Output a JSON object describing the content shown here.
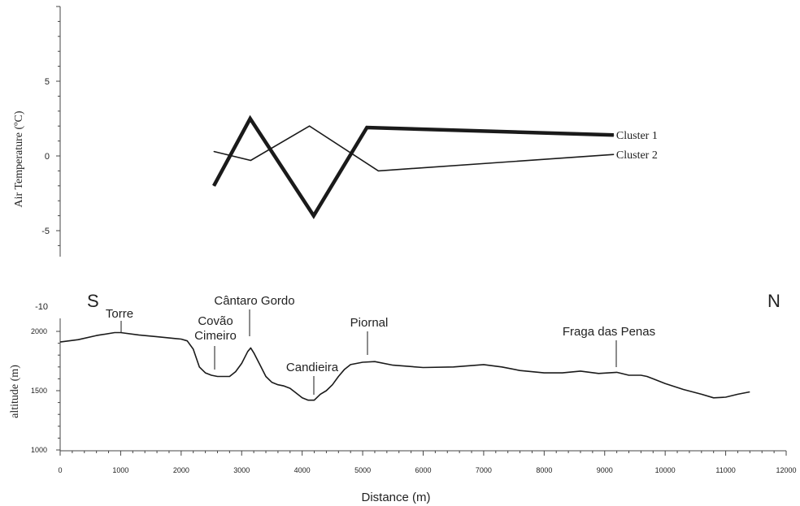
{
  "chart_data": [
    {
      "type": "line",
      "ylabel": "Air Temperature (ºC)",
      "ylim": [
        -10,
        10
      ],
      "y_ticks": [
        "5",
        "0",
        "-5",
        "-10"
      ],
      "series": [
        {
          "name": "Cluster 1",
          "emphasis": "thick",
          "x": [
            2540,
            3140,
            4190,
            5070,
            9150
          ],
          "values": [
            -2.0,
            2.5,
            -4.0,
            1.9,
            1.4
          ]
        },
        {
          "name": "Cluster 2",
          "emphasis": "thin",
          "x": [
            2540,
            3150,
            4120,
            5260,
            9150
          ],
          "values": [
            0.3,
            -0.3,
            2.0,
            -1.0,
            0.1
          ]
        }
      ]
    },
    {
      "type": "area",
      "xlabel": "Distance (m)",
      "ylabel": "altitude (m)",
      "xlim": [
        0,
        12000
      ],
      "ylim": [
        1000,
        2000
      ],
      "x_ticks": [
        "0",
        "1000",
        "2000",
        "3000",
        "4000",
        "5000",
        "6000",
        "7000",
        "8000",
        "9000",
        "10000",
        "11000",
        "12000"
      ],
      "y_ticks": [
        "2000",
        "1500",
        "1000"
      ],
      "direction_labels": {
        "left": "S",
        "right": "N"
      },
      "x": [
        0,
        300,
        600,
        900,
        1000,
        1300,
        1600,
        1900,
        2000,
        2100,
        2200,
        2300,
        2400,
        2500,
        2600,
        2800,
        2900,
        3000,
        3100,
        3150,
        3200,
        3300,
        3400,
        3500,
        3600,
        3700,
        3800,
        3900,
        4000,
        4100,
        4200,
        4300,
        4400,
        4500,
        4600,
        4700,
        4800,
        5000,
        5200,
        5500,
        6000,
        6500,
        7000,
        7300,
        7600,
        8000,
        8300,
        8600,
        8900,
        9200,
        9400,
        9600,
        9700,
        9800,
        10000,
        10300,
        10600,
        10800,
        11000,
        11200,
        11400
      ],
      "values": [
        1910,
        1930,
        1965,
        1990,
        1990,
        1970,
        1955,
        1940,
        1935,
        1920,
        1850,
        1700,
        1650,
        1630,
        1620,
        1620,
        1660,
        1730,
        1830,
        1860,
        1820,
        1720,
        1620,
        1570,
        1550,
        1540,
        1520,
        1480,
        1440,
        1420,
        1420,
        1470,
        1500,
        1550,
        1620,
        1680,
        1720,
        1740,
        1745,
        1715,
        1695,
        1700,
        1720,
        1700,
        1670,
        1650,
        1650,
        1665,
        1645,
        1655,
        1630,
        1630,
        1620,
        1600,
        1560,
        1510,
        1470,
        1440,
        1445,
        1470,
        1490
      ],
      "annotations": [
        {
          "text": "Torre",
          "x": 1000
        },
        {
          "text": "Covão\nCimeiro",
          "x": 2540
        },
        {
          "text": "Cântaro Gordo",
          "x": 3150
        },
        {
          "text": "Candieira",
          "x": 4150
        },
        {
          "text": "Piornal",
          "x": 5070
        },
        {
          "text": "Fraga das Penas",
          "x": 9150
        }
      ]
    }
  ]
}
